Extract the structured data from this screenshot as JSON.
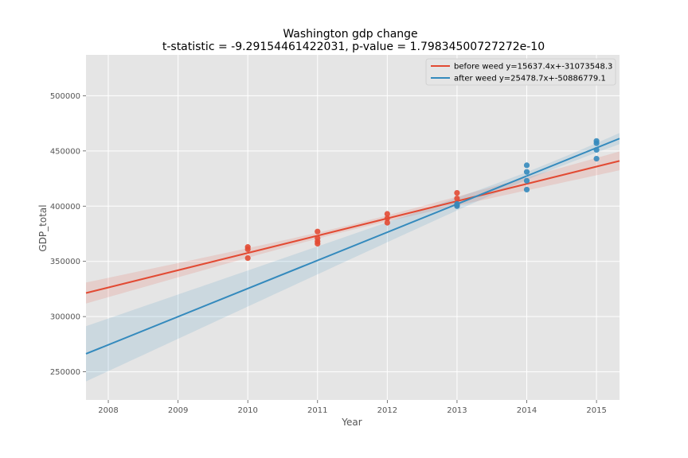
{
  "chart_data": {
    "type": "scatter",
    "title": "Washington gdp change",
    "subtitle": "t-statistic = -9.29154461422031, p-value = 1.79834500727272e-10",
    "xlabel": "Year",
    "ylabel": "GDP_total",
    "xlim": [
      2007.68,
      2015.33
    ],
    "ylim": [
      224500,
      537000
    ],
    "xticks": [
      2008,
      2009,
      2010,
      2011,
      2012,
      2013,
      2014,
      2015
    ],
    "yticks": [
      250000,
      300000,
      350000,
      400000,
      450000,
      500000
    ],
    "grid": true,
    "legend_position": "top-right",
    "series": [
      {
        "name": "before weed y=15637.4x+-31073548.3",
        "color": "#E24A33",
        "slope": 15637.4,
        "intercept": -31073548.3,
        "ci_start_halfwidth": 9500,
        "ci_min_halfwidth": 2500,
        "ci_end_halfwidth": 8500,
        "points": [
          {
            "x": 2010,
            "y": 363000
          },
          {
            "x": 2010,
            "y": 361000
          },
          {
            "x": 2010,
            "y": 353000
          },
          {
            "x": 2011,
            "y": 377000
          },
          {
            "x": 2011,
            "y": 371000
          },
          {
            "x": 2011,
            "y": 368000
          },
          {
            "x": 2011,
            "y": 366000
          },
          {
            "x": 2012,
            "y": 393000
          },
          {
            "x": 2012,
            "y": 389000
          },
          {
            "x": 2012,
            "y": 385000
          },
          {
            "x": 2013,
            "y": 412000
          },
          {
            "x": 2013,
            "y": 407000
          },
          {
            "x": 2013,
            "y": 401000
          }
        ]
      },
      {
        "name": "after weed y=25478.7x+-50886779.1",
        "color": "#348ABD",
        "slope": 25478.7,
        "intercept": -50886779.1,
        "ci_start_halfwidth": 25000,
        "ci_min_halfwidth": 3500,
        "ci_end_halfwidth": 5000,
        "points": [
          {
            "x": 2013,
            "y": 400000
          },
          {
            "x": 2013,
            "y": 402000
          },
          {
            "x": 2014,
            "y": 415000
          },
          {
            "x": 2014,
            "y": 423000
          },
          {
            "x": 2014,
            "y": 431000
          },
          {
            "x": 2014,
            "y": 437000
          },
          {
            "x": 2015,
            "y": 443000
          },
          {
            "x": 2015,
            "y": 451000
          },
          {
            "x": 2015,
            "y": 457000
          },
          {
            "x": 2015,
            "y": 459000
          }
        ]
      }
    ]
  }
}
